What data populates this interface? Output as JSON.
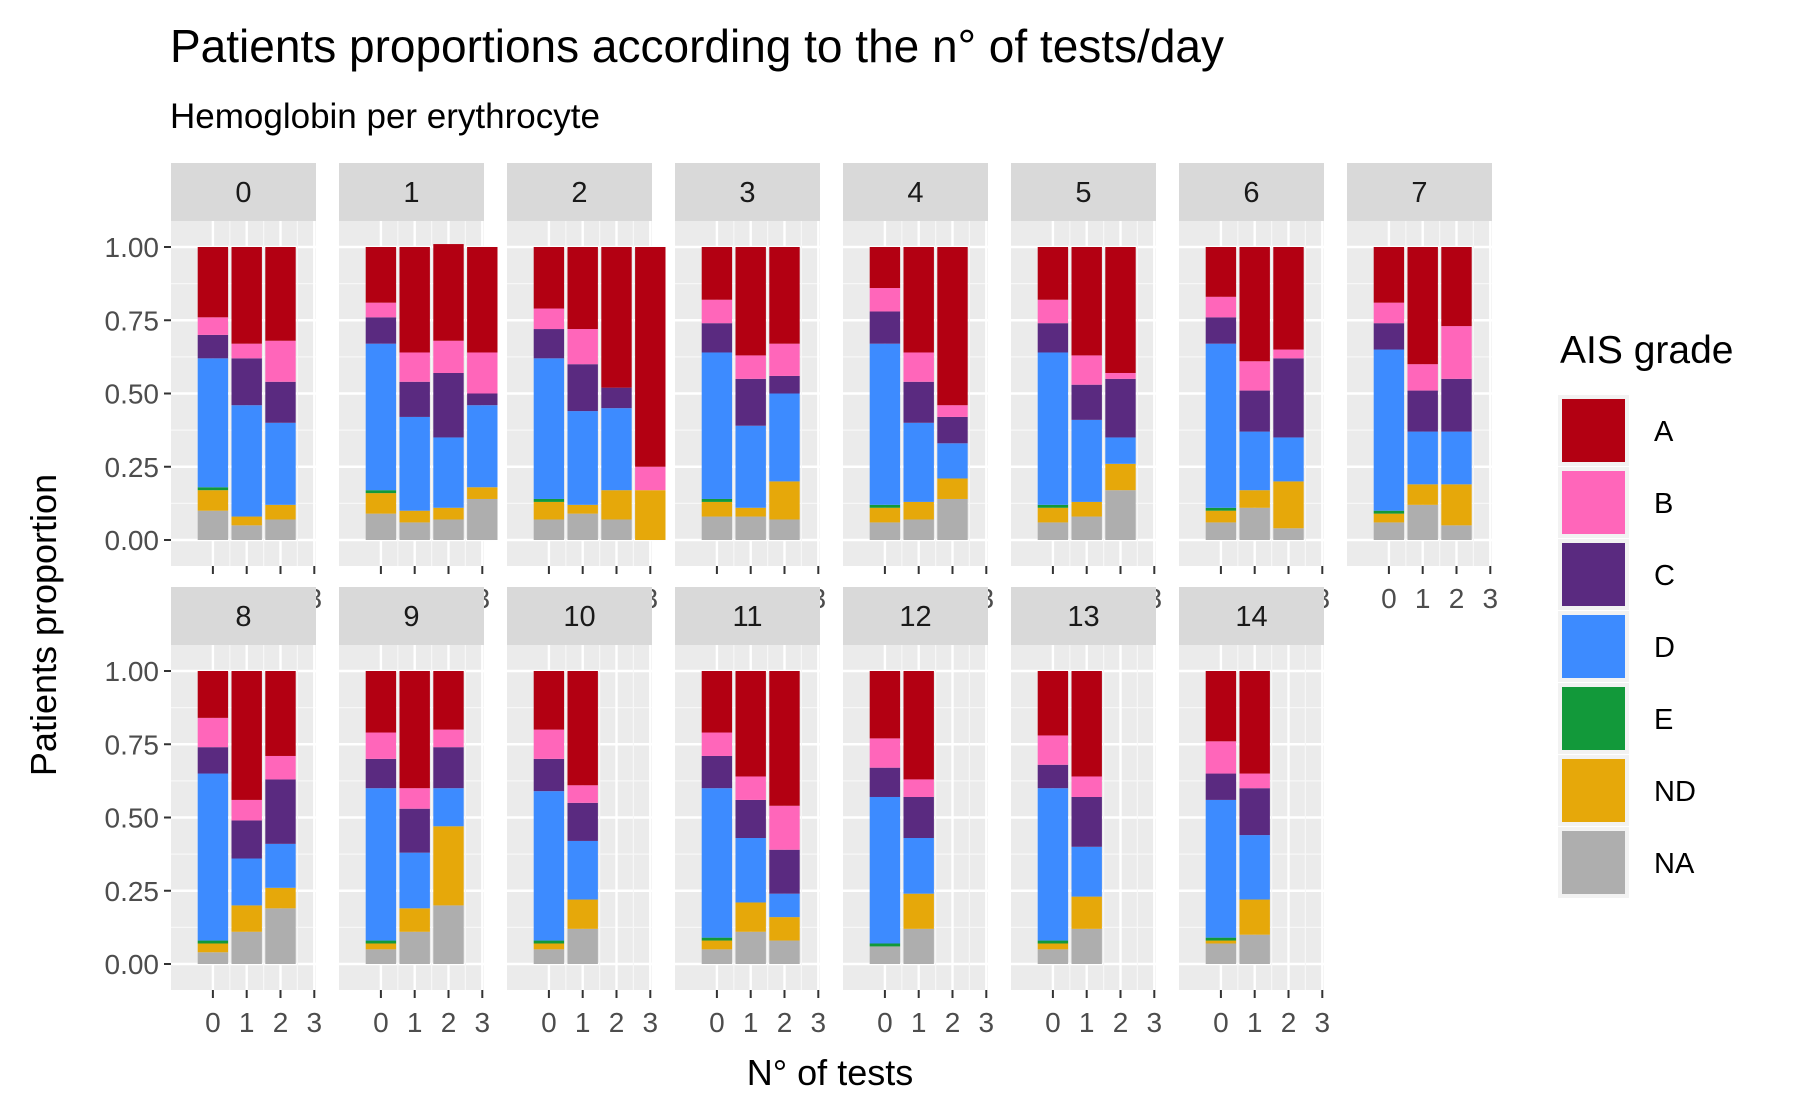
{
  "chart_data": {
    "type": "bar",
    "stacked": true,
    "title": "Patients proportions according to the n° of tests/day",
    "subtitle": "Hemoglobin per erythrocyte",
    "xlabel": "N° of tests",
    "ylabel": "Patients proportion",
    "ylim": [
      0,
      1
    ],
    "y_ticks": [
      "0.00",
      "0.25",
      "0.50",
      "0.75",
      "1.00"
    ],
    "x_ticks": [
      "0",
      "1",
      "2",
      "3"
    ],
    "legend": {
      "title": "AIS grade",
      "position": "right"
    },
    "grades": [
      "A",
      "B",
      "C",
      "D",
      "E",
      "ND",
      "NA"
    ],
    "colors": {
      "A": "#B30012",
      "B": "#FF66BA",
      "C": "#5A2A80",
      "D": "#3D8BFF",
      "E": "#12993A",
      "ND": "#E6A80A",
      "NA": "#AEAEAE"
    },
    "facets": [
      {
        "label": "0",
        "bars": [
          {
            "x": "0",
            "NA": 0.1,
            "ND": 0.07,
            "E": 0.01,
            "D": 0.44,
            "C": 0.08,
            "B": 0.06,
            "A": 0.24
          },
          {
            "x": "1",
            "NA": 0.05,
            "ND": 0.03,
            "E": 0.0,
            "D": 0.38,
            "C": 0.16,
            "B": 0.05,
            "A": 0.33
          },
          {
            "x": "2",
            "NA": 0.07,
            "ND": 0.05,
            "E": 0.0,
            "D": 0.28,
            "C": 0.14,
            "B": 0.14,
            "A": 0.32
          }
        ]
      },
      {
        "label": "1",
        "bars": [
          {
            "x": "0",
            "NA": 0.09,
            "ND": 0.07,
            "E": 0.01,
            "D": 0.5,
            "C": 0.09,
            "B": 0.05,
            "A": 0.19
          },
          {
            "x": "1",
            "NA": 0.06,
            "ND": 0.04,
            "E": 0.0,
            "D": 0.32,
            "C": 0.12,
            "B": 0.1,
            "A": 0.36
          },
          {
            "x": "2",
            "NA": 0.07,
            "ND": 0.04,
            "E": 0.0,
            "D": 0.24,
            "C": 0.22,
            "B": 0.11,
            "A": 0.33
          },
          {
            "x": "3",
            "NA": 0.14,
            "ND": 0.04,
            "E": 0.0,
            "D": 0.28,
            "C": 0.04,
            "B": 0.14,
            "A": 0.36
          }
        ]
      },
      {
        "label": "2",
        "bars": [
          {
            "x": "0",
            "NA": 0.07,
            "ND": 0.06,
            "E": 0.01,
            "D": 0.48,
            "C": 0.1,
            "B": 0.07,
            "A": 0.21
          },
          {
            "x": "1",
            "NA": 0.09,
            "ND": 0.03,
            "E": 0.0,
            "D": 0.32,
            "C": 0.16,
            "B": 0.12,
            "A": 0.28
          },
          {
            "x": "2",
            "NA": 0.07,
            "ND": 0.1,
            "E": 0.0,
            "D": 0.28,
            "C": 0.07,
            "B": 0.0,
            "A": 0.48
          },
          {
            "x": "3",
            "NA": 0.0,
            "ND": 0.17,
            "E": 0.0,
            "D": 0.0,
            "C": 0.0,
            "B": 0.08,
            "A": 0.75
          }
        ]
      },
      {
        "label": "3",
        "bars": [
          {
            "x": "0",
            "NA": 0.08,
            "ND": 0.05,
            "E": 0.01,
            "D": 0.5,
            "C": 0.1,
            "B": 0.08,
            "A": 0.18
          },
          {
            "x": "1",
            "NA": 0.08,
            "ND": 0.03,
            "E": 0.0,
            "D": 0.28,
            "C": 0.16,
            "B": 0.08,
            "A": 0.37
          },
          {
            "x": "2",
            "NA": 0.07,
            "ND": 0.13,
            "E": 0.0,
            "D": 0.3,
            "C": 0.06,
            "B": 0.11,
            "A": 0.33
          }
        ]
      },
      {
        "label": "4",
        "bars": [
          {
            "x": "0",
            "NA": 0.06,
            "ND": 0.05,
            "E": 0.01,
            "D": 0.55,
            "C": 0.11,
            "B": 0.08,
            "A": 0.14
          },
          {
            "x": "1",
            "NA": 0.07,
            "ND": 0.06,
            "E": 0.0,
            "D": 0.27,
            "C": 0.14,
            "B": 0.1,
            "A": 0.36
          },
          {
            "x": "2",
            "NA": 0.14,
            "ND": 0.07,
            "E": 0.0,
            "D": 0.12,
            "C": 0.09,
            "B": 0.04,
            "A": 0.54
          }
        ]
      },
      {
        "label": "5",
        "bars": [
          {
            "x": "0",
            "NA": 0.06,
            "ND": 0.05,
            "E": 0.01,
            "D": 0.52,
            "C": 0.1,
            "B": 0.08,
            "A": 0.18
          },
          {
            "x": "1",
            "NA": 0.08,
            "ND": 0.05,
            "E": 0.0,
            "D": 0.28,
            "C": 0.12,
            "B": 0.1,
            "A": 0.37
          },
          {
            "x": "2",
            "NA": 0.17,
            "ND": 0.09,
            "E": 0.0,
            "D": 0.09,
            "C": 0.2,
            "B": 0.02,
            "A": 0.43
          }
        ]
      },
      {
        "label": "6",
        "bars": [
          {
            "x": "0",
            "NA": 0.06,
            "ND": 0.04,
            "E": 0.01,
            "D": 0.56,
            "C": 0.09,
            "B": 0.07,
            "A": 0.17
          },
          {
            "x": "1",
            "NA": 0.11,
            "ND": 0.06,
            "E": 0.0,
            "D": 0.2,
            "C": 0.14,
            "B": 0.1,
            "A": 0.39
          },
          {
            "x": "2",
            "NA": 0.04,
            "ND": 0.16,
            "E": 0.0,
            "D": 0.15,
            "C": 0.27,
            "B": 0.03,
            "A": 0.35
          }
        ]
      },
      {
        "label": "7",
        "bars": [
          {
            "x": "0",
            "NA": 0.06,
            "ND": 0.03,
            "E": 0.01,
            "D": 0.55,
            "C": 0.09,
            "B": 0.07,
            "A": 0.19
          },
          {
            "x": "1",
            "NA": 0.12,
            "ND": 0.07,
            "E": 0.0,
            "D": 0.18,
            "C": 0.14,
            "B": 0.09,
            "A": 0.4
          },
          {
            "x": "2",
            "NA": 0.05,
            "ND": 0.14,
            "E": 0.0,
            "D": 0.18,
            "C": 0.18,
            "B": 0.18,
            "A": 0.27
          }
        ]
      },
      {
        "label": "8",
        "bars": [
          {
            "x": "0",
            "NA": 0.04,
            "ND": 0.03,
            "E": 0.01,
            "D": 0.57,
            "C": 0.09,
            "B": 0.1,
            "A": 0.16
          },
          {
            "x": "1",
            "NA": 0.11,
            "ND": 0.09,
            "E": 0.0,
            "D": 0.16,
            "C": 0.13,
            "B": 0.07,
            "A": 0.44
          },
          {
            "x": "2",
            "NA": 0.19,
            "ND": 0.07,
            "E": 0.0,
            "D": 0.15,
            "C": 0.22,
            "B": 0.08,
            "A": 0.29
          }
        ]
      },
      {
        "label": "9",
        "bars": [
          {
            "x": "0",
            "NA": 0.05,
            "ND": 0.02,
            "E": 0.01,
            "D": 0.52,
            "C": 0.1,
            "B": 0.09,
            "A": 0.21
          },
          {
            "x": "1",
            "NA": 0.11,
            "ND": 0.08,
            "E": 0.0,
            "D": 0.19,
            "C": 0.15,
            "B": 0.07,
            "A": 0.4
          },
          {
            "x": "2",
            "NA": 0.2,
            "ND": 0.27,
            "E": 0.0,
            "D": 0.13,
            "C": 0.14,
            "B": 0.06,
            "A": 0.2
          }
        ]
      },
      {
        "label": "10",
        "bars": [
          {
            "x": "0",
            "NA": 0.05,
            "ND": 0.02,
            "E": 0.01,
            "D": 0.51,
            "C": 0.11,
            "B": 0.1,
            "A": 0.2
          },
          {
            "x": "1",
            "NA": 0.12,
            "ND": 0.1,
            "E": 0.0,
            "D": 0.2,
            "C": 0.13,
            "B": 0.06,
            "A": 0.39
          }
        ]
      },
      {
        "label": "11",
        "bars": [
          {
            "x": "0",
            "NA": 0.05,
            "ND": 0.03,
            "E": 0.01,
            "D": 0.51,
            "C": 0.11,
            "B": 0.08,
            "A": 0.21
          },
          {
            "x": "1",
            "NA": 0.11,
            "ND": 0.1,
            "E": 0.0,
            "D": 0.22,
            "C": 0.13,
            "B": 0.08,
            "A": 0.36
          },
          {
            "x": "2",
            "NA": 0.08,
            "ND": 0.08,
            "E": 0.0,
            "D": 0.08,
            "C": 0.15,
            "B": 0.15,
            "A": 0.46
          }
        ]
      },
      {
        "label": "12",
        "bars": [
          {
            "x": "0",
            "NA": 0.06,
            "ND": 0.0,
            "E": 0.01,
            "D": 0.5,
            "C": 0.1,
            "B": 0.1,
            "A": 0.23
          },
          {
            "x": "1",
            "NA": 0.12,
            "ND": 0.12,
            "E": 0.0,
            "D": 0.19,
            "C": 0.14,
            "B": 0.06,
            "A": 0.37
          }
        ]
      },
      {
        "label": "13",
        "bars": [
          {
            "x": "0",
            "NA": 0.05,
            "ND": 0.02,
            "E": 0.01,
            "D": 0.52,
            "C": 0.08,
            "B": 0.1,
            "A": 0.22
          },
          {
            "x": "1",
            "NA": 0.12,
            "ND": 0.11,
            "E": 0.0,
            "D": 0.17,
            "C": 0.17,
            "B": 0.07,
            "A": 0.36
          }
        ]
      },
      {
        "label": "14",
        "bars": [
          {
            "x": "0",
            "NA": 0.07,
            "ND": 0.01,
            "E": 0.01,
            "D": 0.47,
            "C": 0.09,
            "B": 0.11,
            "A": 0.24
          },
          {
            "x": "1",
            "NA": 0.1,
            "ND": 0.12,
            "E": 0.0,
            "D": 0.22,
            "C": 0.16,
            "B": 0.05,
            "A": 0.35
          }
        ]
      }
    ]
  }
}
